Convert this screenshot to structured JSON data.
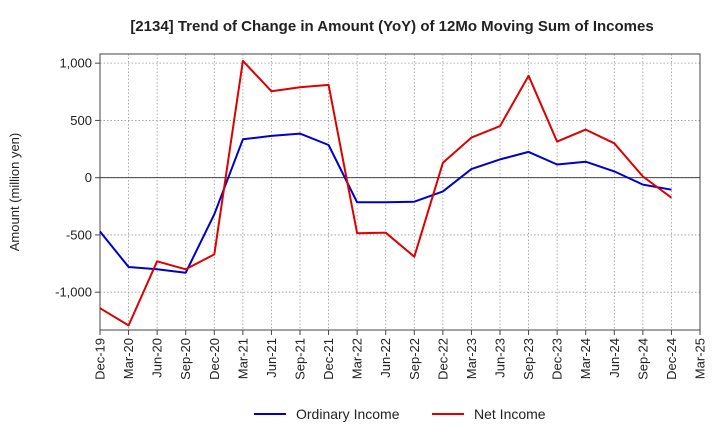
{
  "chart_data": {
    "type": "line",
    "title": "[2134]  Trend of Change in Amount (YoY) of 12Mo Moving Sum of Incomes",
    "ylabel": "Amount (million yen)",
    "xlabel": "",
    "ylim": [
      -1330,
      1080
    ],
    "yticks": [
      1000,
      500,
      0,
      -500,
      -1000
    ],
    "ytick_labels": [
      "1,000",
      "500",
      "0",
      "-500",
      "-1,000"
    ],
    "categories": [
      "Dec-19",
      "Mar-20",
      "Jun-20",
      "Sep-20",
      "Dec-20",
      "Mar-21",
      "Jun-21",
      "Sep-21",
      "Dec-21",
      "Mar-22",
      "Jun-22",
      "Sep-22",
      "Dec-22",
      "Mar-23",
      "Jun-23",
      "Sep-23",
      "Dec-23",
      "Mar-24",
      "Jun-24",
      "Sep-24",
      "Dec-24",
      "Mar-25"
    ],
    "grid": true,
    "legend_position": "bottom",
    "series": [
      {
        "name": "Ordinary Income",
        "color": "#0000cc",
        "values": [
          -470,
          -780,
          -800,
          -830,
          -320,
          335,
          365,
          385,
          285,
          -215,
          -215,
          -210,
          -120,
          75,
          160,
          225,
          115,
          140,
          55,
          -60,
          -105,
          null
        ]
      },
      {
        "name": "Net Income",
        "color": "#dd0000",
        "values": [
          -1140,
          -1290,
          -730,
          -800,
          -670,
          1020,
          755,
          790,
          810,
          -485,
          -480,
          -690,
          130,
          350,
          450,
          890,
          315,
          420,
          300,
          10,
          -175,
          null
        ]
      }
    ]
  }
}
